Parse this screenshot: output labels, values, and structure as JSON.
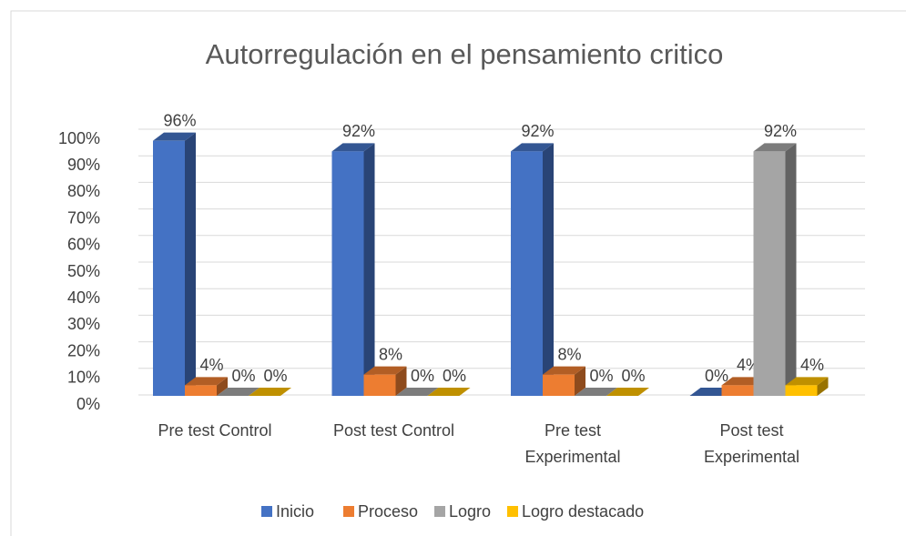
{
  "chart_data": {
    "type": "bar3d",
    "title": "Autorregulación en el pensamiento critico",
    "categories": [
      "Pre test Control",
      "Post test Control",
      "Pre test Experimental",
      "Post test Experimental"
    ],
    "series": [
      {
        "name": "Inicio",
        "color": "#4472c4",
        "values": [
          96,
          92,
          92,
          0
        ],
        "value_labels": [
          "96%",
          "92%",
          "92%",
          "0%"
        ]
      },
      {
        "name": "Proceso",
        "color": "#ed7d31",
        "values": [
          4,
          8,
          8,
          4
        ],
        "value_labels": [
          "4%",
          "8%",
          "8%",
          "4%"
        ]
      },
      {
        "name": "Logro",
        "color": "#a5a5a5",
        "values": [
          0,
          0,
          0,
          92
        ],
        "value_labels": [
          "0%",
          "0%",
          "0%",
          "92%"
        ]
      },
      {
        "name": "Logro destacado",
        "color": "#ffc000",
        "values": [
          0,
          0,
          0,
          4
        ],
        "value_labels": [
          "0%",
          "0%",
          "0%",
          "4%"
        ]
      }
    ],
    "ylim": [
      0,
      100
    ],
    "yticks": [
      {
        "value": 0,
        "label": "0%"
      },
      {
        "value": 10,
        "label": "10%"
      },
      {
        "value": 20,
        "label": "20%"
      },
      {
        "value": 30,
        "label": "30%"
      },
      {
        "value": 40,
        "label": "40%"
      },
      {
        "value": 50,
        "label": "50%"
      },
      {
        "value": 60,
        "label": "60%"
      },
      {
        "value": 70,
        "label": "70%"
      },
      {
        "value": 80,
        "label": "80%"
      },
      {
        "value": 90,
        "label": "90%"
      },
      {
        "value": 100,
        "label": "100%"
      }
    ],
    "grid": true,
    "legend": "bottom"
  }
}
